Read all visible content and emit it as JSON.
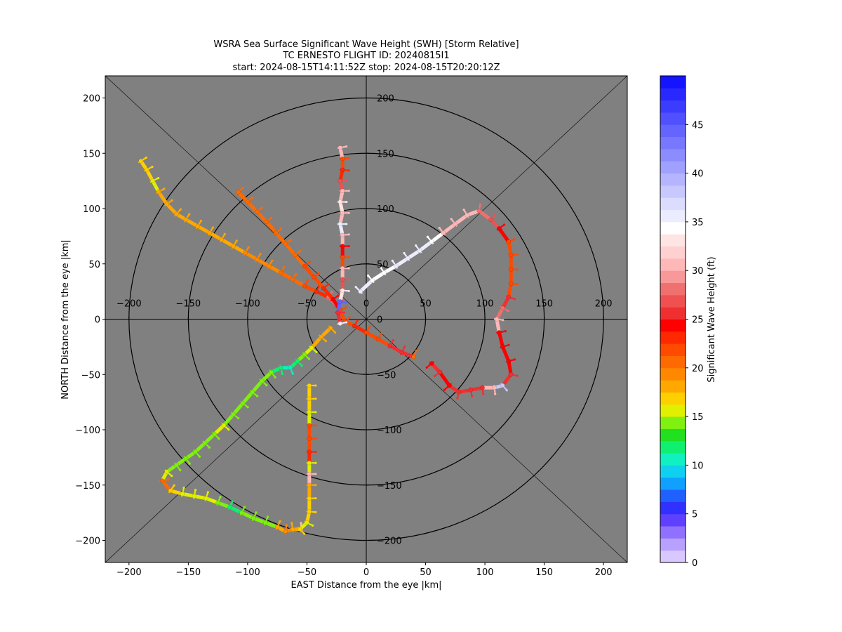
{
  "chart_data": {
    "type": "scatter",
    "title_lines": [
      "WSRA Sea Surface Significant Wave Height (SWH) [Storm Relative]",
      "TC ERNESTO FLIGHT ID: 20240815I1",
      "start: 2024-08-15T14:11:52Z    stop: 2024-08-15T20:20:12Z"
    ],
    "xlabel": "EAST Distance from the eye |km|",
    "ylabel": "NORTH Distance from the eye |km|",
    "xlim": [
      -220,
      220
    ],
    "ylim": [
      -220,
      220
    ],
    "xticks": [
      -200,
      -150,
      -100,
      -50,
      0,
      50,
      100,
      150,
      200
    ],
    "yticks": [
      -200,
      -150,
      -100,
      -50,
      0,
      50,
      100,
      150,
      200
    ],
    "inner_xticks": [
      -200,
      -150,
      -100,
      -50,
      0,
      50,
      100,
      150,
      200
    ],
    "inner_yticks": [
      200,
      150,
      100,
      50,
      0,
      -50,
      -100,
      -150,
      -200
    ],
    "range_rings_km": [
      50,
      100,
      150,
      200
    ],
    "background_color": "#808080",
    "grid": false,
    "colorbar": {
      "label": "Significant Wave Height (ft)",
      "range": [
        0,
        50
      ],
      "ticks": [
        0,
        5,
        10,
        15,
        20,
        25,
        30,
        35,
        40,
        45
      ],
      "colors": [
        "#d8c8ff",
        "#b8a0ff",
        "#9070ff",
        "#6040ff",
        "#3030ff",
        "#2060ff",
        "#10a0ff",
        "#10d0f0",
        "#10f0c0",
        "#10f070",
        "#20e020",
        "#80f010",
        "#e0f000",
        "#ffd000",
        "#ffa800",
        "#ff8800",
        "#ff6a00",
        "#ff4a00",
        "#ff2800",
        "#ff0000",
        "#f03030",
        "#f05050",
        "#f07070",
        "#f89898",
        "#ffb8b8",
        "#ffd0d0",
        "#ffe4e4",
        "#ffffff",
        "#ececff",
        "#dcdcff",
        "#c8c8ff",
        "#b4b4ff",
        "#a0a0ff",
        "#8c8cff",
        "#7878ff",
        "#6464ff",
        "#5050ff",
        "#3c3cff",
        "#2828ff",
        "#1414ff"
      ]
    },
    "series": [
      {
        "values": [
          {
            "x": -190,
            "y": 143,
            "swh": 17
          },
          {
            "x": -185,
            "y": 135,
            "swh": 17
          },
          {
            "x": -180,
            "y": 125,
            "swh": 16
          },
          {
            "x": -175,
            "y": 115,
            "swh": 18
          },
          {
            "x": -168,
            "y": 104,
            "swh": 18
          },
          {
            "x": -160,
            "y": 95,
            "swh": 18
          },
          {
            "x": -152,
            "y": 90,
            "swh": 18
          },
          {
            "x": -142,
            "y": 84,
            "swh": 18
          },
          {
            "x": -132,
            "y": 78,
            "swh": 18
          },
          {
            "x": -122,
            "y": 72,
            "swh": 18
          },
          {
            "x": -112,
            "y": 66,
            "swh": 18
          },
          {
            "x": -102,
            "y": 60,
            "swh": 19
          },
          {
            "x": -92,
            "y": 54,
            "swh": 19
          },
          {
            "x": -82,
            "y": 48,
            "swh": 19
          },
          {
            "x": -72,
            "y": 42,
            "swh": 20
          },
          {
            "x": -62,
            "y": 36,
            "swh": 21
          },
          {
            "x": -52,
            "y": 30,
            "swh": 22
          },
          {
            "x": -42,
            "y": 25,
            "swh": 23
          },
          {
            "x": -32,
            "y": 20,
            "swh": 28
          },
          {
            "x": -24,
            "y": 12,
            "swh": 26
          }
        ]
      },
      {
        "values": [
          {
            "x": -108,
            "y": 115,
            "swh": 21
          },
          {
            "x": -100,
            "y": 106,
            "swh": 20
          },
          {
            "x": -92,
            "y": 97,
            "swh": 20
          },
          {
            "x": -84,
            "y": 88,
            "swh": 20
          },
          {
            "x": -76,
            "y": 78,
            "swh": 21
          },
          {
            "x": -68,
            "y": 68,
            "swh": 21
          },
          {
            "x": -60,
            "y": 58,
            "swh": 21
          },
          {
            "x": -52,
            "y": 48,
            "swh": 22
          },
          {
            "x": -44,
            "y": 38,
            "swh": 22
          },
          {
            "x": -36,
            "y": 28,
            "swh": 23
          },
          {
            "x": -28,
            "y": 18,
            "swh": 24
          },
          {
            "x": -22,
            "y": 8,
            "swh": 22
          },
          {
            "x": -18,
            "y": -2,
            "swh": 22
          },
          {
            "x": -10,
            "y": -6,
            "swh": 23
          },
          {
            "x": 0,
            "y": -12,
            "swh": 22
          },
          {
            "x": 10,
            "y": -18,
            "swh": 22
          },
          {
            "x": 20,
            "y": -24,
            "swh": 25
          },
          {
            "x": 30,
            "y": -30,
            "swh": 25
          },
          {
            "x": 40,
            "y": -34,
            "swh": 20
          }
        ]
      },
      {
        "values": [
          {
            "x": -22,
            "y": 155,
            "swh": 30
          },
          {
            "x": -20,
            "y": 145,
            "swh": 22
          },
          {
            "x": -20,
            "y": 135,
            "swh": 23
          },
          {
            "x": -22,
            "y": 125,
            "swh": 27
          },
          {
            "x": -20,
            "y": 116,
            "swh": 31
          },
          {
            "x": -22,
            "y": 106,
            "swh": 33
          },
          {
            "x": -20,
            "y": 96,
            "swh": 31
          },
          {
            "x": -22,
            "y": 86,
            "swh": 35
          },
          {
            "x": -20,
            "y": 76,
            "swh": 30
          },
          {
            "x": -20,
            "y": 66,
            "swh": 24
          },
          {
            "x": -20,
            "y": 56,
            "swh": 22
          },
          {
            "x": -20,
            "y": 46,
            "swh": 31
          },
          {
            "x": -20,
            "y": 36,
            "swh": 27
          },
          {
            "x": -20,
            "y": 26,
            "swh": 33
          },
          {
            "x": -22,
            "y": 16,
            "swh": 44
          },
          {
            "x": -24,
            "y": 6,
            "swh": 25
          },
          {
            "x": -22,
            "y": -4,
            "swh": 35
          }
        ]
      },
      {
        "values": [
          {
            "x": -5,
            "y": 25,
            "swh": 36
          },
          {
            "x": 5,
            "y": 35,
            "swh": 34
          },
          {
            "x": 15,
            "y": 42,
            "swh": 34
          },
          {
            "x": 25,
            "y": 48,
            "swh": 36
          },
          {
            "x": 35,
            "y": 55,
            "swh": 36
          },
          {
            "x": 45,
            "y": 62,
            "swh": 35
          },
          {
            "x": 55,
            "y": 70,
            "swh": 34
          },
          {
            "x": 65,
            "y": 78,
            "swh": 31
          },
          {
            "x": 75,
            "y": 86,
            "swh": 31
          },
          {
            "x": 85,
            "y": 94,
            "swh": 30
          },
          {
            "x": 95,
            "y": 98,
            "swh": 28
          },
          {
            "x": 105,
            "y": 90,
            "swh": 27
          },
          {
            "x": 112,
            "y": 82,
            "swh": 24
          },
          {
            "x": 120,
            "y": 70,
            "swh": 22
          },
          {
            "x": 122,
            "y": 58,
            "swh": 22
          },
          {
            "x": 122,
            "y": 45,
            "swh": 22
          },
          {
            "x": 122,
            "y": 32,
            "swh": 22
          },
          {
            "x": 120,
            "y": 20,
            "swh": 26
          },
          {
            "x": 115,
            "y": 10,
            "swh": 28
          },
          {
            "x": 110,
            "y": 0,
            "swh": 31
          },
          {
            "x": 112,
            "y": -12,
            "swh": 24
          },
          {
            "x": 115,
            "y": -25,
            "swh": 24
          },
          {
            "x": 120,
            "y": -38,
            "swh": 24
          },
          {
            "x": 122,
            "y": -50,
            "swh": 25
          },
          {
            "x": 115,
            "y": -60,
            "swh": 38
          },
          {
            "x": 108,
            "y": -62,
            "swh": 31
          },
          {
            "x": 98,
            "y": -62,
            "swh": 25
          },
          {
            "x": 88,
            "y": -64,
            "swh": 25
          },
          {
            "x": 78,
            "y": -66,
            "swh": 25
          },
          {
            "x": 70,
            "y": -60,
            "swh": 24
          },
          {
            "x": 62,
            "y": -48,
            "swh": 25
          },
          {
            "x": 55,
            "y": -40,
            "swh": 24
          }
        ]
      },
      {
        "values": [
          {
            "x": -30,
            "y": -8,
            "swh": 18
          },
          {
            "x": -38,
            "y": -16,
            "swh": 18
          },
          {
            "x": -46,
            "y": -26,
            "swh": 16
          },
          {
            "x": -52,
            "y": -32,
            "swh": 14
          },
          {
            "x": -58,
            "y": -38,
            "swh": 12
          },
          {
            "x": -64,
            "y": -44,
            "swh": 10
          },
          {
            "x": -72,
            "y": -44,
            "swh": 12
          },
          {
            "x": -80,
            "y": -48,
            "swh": 14
          },
          {
            "x": -88,
            "y": -56,
            "swh": 14
          },
          {
            "x": -96,
            "y": -66,
            "swh": 14
          },
          {
            "x": -104,
            "y": -76,
            "swh": 14
          },
          {
            "x": -112,
            "y": -86,
            "swh": 14
          },
          {
            "x": -120,
            "y": -96,
            "swh": 15
          },
          {
            "x": -128,
            "y": -104,
            "swh": 14
          },
          {
            "x": -136,
            "y": -112,
            "swh": 14
          },
          {
            "x": -144,
            "y": -120,
            "swh": 14
          },
          {
            "x": -152,
            "y": -126,
            "swh": 14
          },
          {
            "x": -160,
            "y": -132,
            "swh": 14
          },
          {
            "x": -168,
            "y": -138,
            "swh": 15
          },
          {
            "x": -172,
            "y": -146,
            "swh": 21
          },
          {
            "x": -165,
            "y": -155,
            "swh": 17
          },
          {
            "x": -155,
            "y": -158,
            "swh": 16
          },
          {
            "x": -145,
            "y": -160,
            "swh": 15
          },
          {
            "x": -135,
            "y": -162,
            "swh": 16
          },
          {
            "x": -125,
            "y": -166,
            "swh": 14
          },
          {
            "x": -115,
            "y": -170,
            "swh": 12
          },
          {
            "x": -105,
            "y": -175,
            "swh": 14
          },
          {
            "x": -95,
            "y": -180,
            "swh": 14
          },
          {
            "x": -85,
            "y": -184,
            "swh": 14
          },
          {
            "x": -75,
            "y": -188,
            "swh": 18
          },
          {
            "x": -68,
            "y": -192,
            "swh": 19
          },
          {
            "x": -62,
            "y": -190,
            "swh": 18
          },
          {
            "x": -55,
            "y": -190,
            "swh": 31
          }
        ]
      },
      {
        "values": [
          {
            "x": -48,
            "y": -60,
            "swh": 17
          },
          {
            "x": -48,
            "y": -72,
            "swh": 17
          },
          {
            "x": -48,
            "y": -84,
            "swh": 16
          },
          {
            "x": -48,
            "y": -96,
            "swh": 22
          },
          {
            "x": -48,
            "y": -108,
            "swh": 22
          },
          {
            "x": -48,
            "y": -120,
            "swh": 23
          },
          {
            "x": -48,
            "y": -130,
            "swh": 15
          },
          {
            "x": -48,
            "y": -140,
            "swh": 30
          },
          {
            "x": -48,
            "y": -150,
            "swh": 18
          },
          {
            "x": -48,
            "y": -162,
            "swh": 17
          },
          {
            "x": -48,
            "y": -174,
            "swh": 17
          },
          {
            "x": -50,
            "y": -184,
            "swh": 16
          },
          {
            "x": -56,
            "y": -190,
            "swh": 17
          }
        ]
      }
    ]
  }
}
